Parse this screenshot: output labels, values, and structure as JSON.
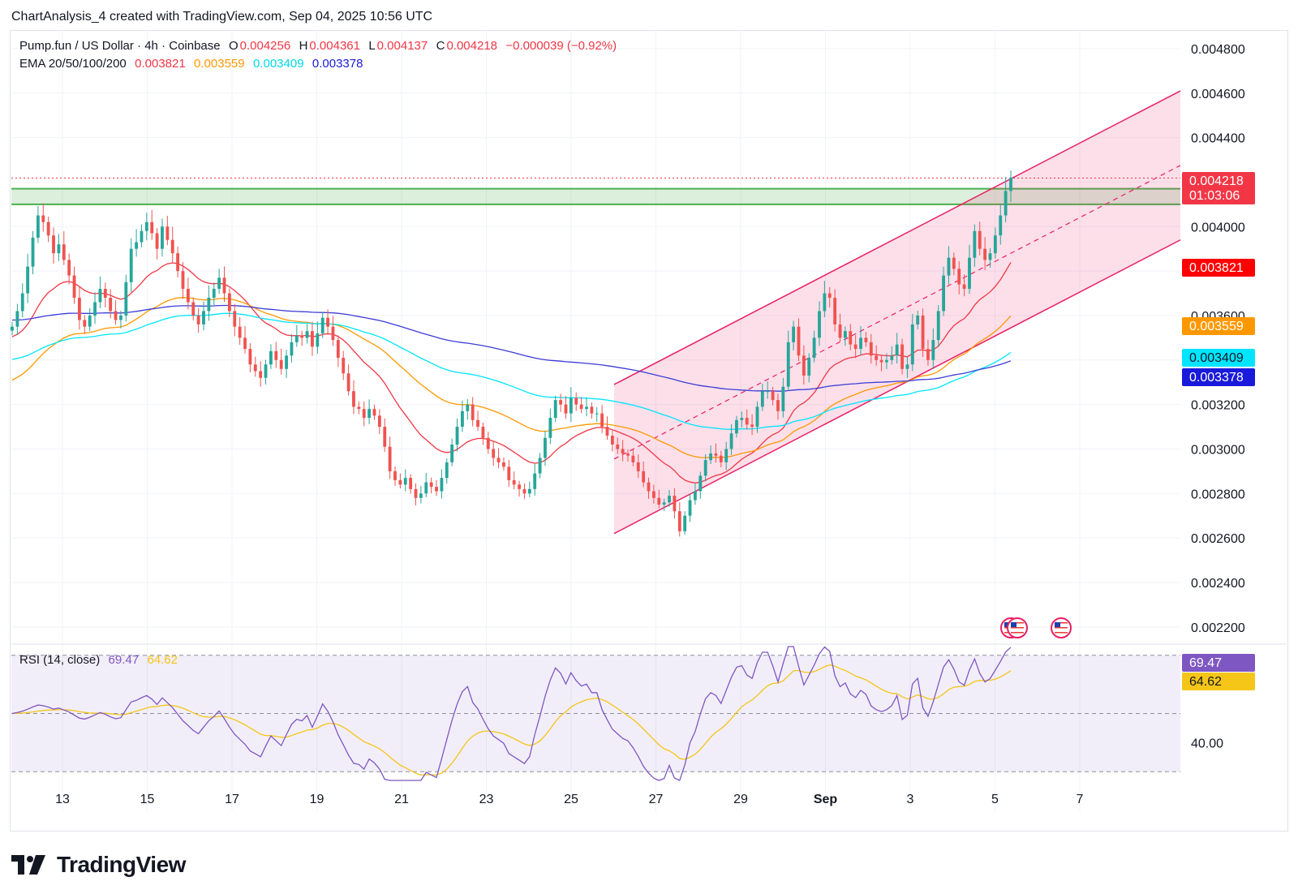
{
  "header": {
    "title": "ChartAnalysis_4 created with TradingView.com, Sep 04, 2025 10:56 UTC"
  },
  "symbol": {
    "name": "Pump.fun / US Dollar · 4h · Coinbase",
    "o_label": "O",
    "o": "0.004256",
    "h_label": "H",
    "h": "0.004361",
    "l_label": "L",
    "l": "0.004137",
    "c_label": "C",
    "c": "0.004218",
    "change": "−0.000039 (−0.92%)"
  },
  "ema_legend": {
    "label": "EMA 20/50/100/200",
    "v20": "0.003821",
    "v50": "0.003559",
    "v100": "0.003409",
    "v200": "0.003378"
  },
  "rsi_legend": {
    "label": "RSI (14, close)",
    "rsi": "69.47",
    "ma": "64.62"
  },
  "colors": {
    "up": "#26a69a",
    "down": "#ef5350",
    "ema20": "#f23645",
    "ema50": "#ff9800",
    "ema100": "#00e5ff",
    "ema200": "#3c3cd6",
    "rsi": "#7e57c2",
    "rsi_ma": "#f5c518",
    "zone": "#4caf50",
    "channel": "#e91e63"
  },
  "chart_data": [
    {
      "type": "candlestick",
      "title": "Pump.fun / US Dollar · 4h · Coinbase",
      "x_ticks": [
        "13",
        "15",
        "17",
        "19",
        "21",
        "23",
        "25",
        "27",
        "29",
        "Sep",
        "3",
        "5",
        "7"
      ],
      "y_ticks": [
        "0.004800",
        "0.004600",
        "0.004400",
        "0.004000",
        "0.003600",
        "0.003200",
        "0.003000",
        "0.002800",
        "0.002600",
        "0.002400",
        "0.002200"
      ],
      "ylim": [
        0.00213,
        0.00488
      ],
      "price_tags": [
        {
          "value": "0.004218",
          "sub": "01:03:06",
          "color": "#f23645"
        },
        {
          "value": "0.003821",
          "color": "#ff0000"
        },
        {
          "value": "0.003559",
          "color": "#ff9800"
        },
        {
          "value": "0.003409",
          "color": "#00e5ff"
        },
        {
          "value": "0.003378",
          "color": "#1a1adb"
        }
      ],
      "resistance_zone": [
        0.0041,
        0.00417
      ],
      "candles_close": [
        0.00355,
        0.00362,
        0.0037,
        0.00382,
        0.00395,
        0.00405,
        0.00402,
        0.00396,
        0.00388,
        0.00392,
        0.00385,
        0.00378,
        0.00368,
        0.00358,
        0.00355,
        0.0036,
        0.00366,
        0.00372,
        0.00368,
        0.00362,
        0.00358,
        0.0036,
        0.00375,
        0.0039,
        0.00393,
        0.00398,
        0.00402,
        0.00397,
        0.0039,
        0.004,
        0.00394,
        0.00388,
        0.0038,
        0.00372,
        0.00366,
        0.0036,
        0.00356,
        0.00362,
        0.00368,
        0.00372,
        0.00377,
        0.0037,
        0.00362,
        0.00355,
        0.0035,
        0.00345,
        0.00338,
        0.00335,
        0.00332,
        0.00338,
        0.00344,
        0.0034,
        0.00336,
        0.00342,
        0.00348,
        0.00351,
        0.0035,
        0.00353,
        0.00346,
        0.00352,
        0.00359,
        0.00355,
        0.00349,
        0.00341,
        0.00334,
        0.00326,
        0.00319,
        0.00318,
        0.00314,
        0.00318,
        0.00315,
        0.0031,
        0.00301,
        0.0029,
        0.00286,
        0.00284,
        0.00287,
        0.00282,
        0.00278,
        0.0028,
        0.00285,
        0.00283,
        0.00281,
        0.00287,
        0.00294,
        0.00302,
        0.0031,
        0.00317,
        0.0032,
        0.00313,
        0.0031,
        0.00305,
        0.003,
        0.00296,
        0.00294,
        0.00292,
        0.00286,
        0.00284,
        0.00282,
        0.0028,
        0.00282,
        0.00289,
        0.00296,
        0.00305,
        0.00314,
        0.00322,
        0.0032,
        0.00316,
        0.00323,
        0.0032,
        0.00318,
        0.00319,
        0.00316,
        0.00316,
        0.0031,
        0.00306,
        0.00302,
        0.003,
        0.00298,
        0.00297,
        0.00294,
        0.0029,
        0.00285,
        0.00281,
        0.00278,
        0.00275,
        0.00276,
        0.00279,
        0.00272,
        0.00263,
        0.0027,
        0.00277,
        0.00281,
        0.00288,
        0.00295,
        0.00298,
        0.00297,
        0.00294,
        0.003,
        0.00307,
        0.00313,
        0.00314,
        0.00311,
        0.0031,
        0.00319,
        0.00326,
        0.00326,
        0.00322,
        0.00317,
        0.00328,
        0.00348,
        0.00355,
        0.00342,
        0.00333,
        0.00341,
        0.0035,
        0.00362,
        0.0037,
        0.00368,
        0.00356,
        0.0035,
        0.00353,
        0.00347,
        0.00345,
        0.0035,
        0.00348,
        0.00342,
        0.0034,
        0.00339,
        0.0034,
        0.00342,
        0.00347,
        0.00336,
        0.00338,
        0.00356,
        0.0036,
        0.00345,
        0.0034,
        0.00349,
        0.00362,
        0.00378,
        0.00386,
        0.00381,
        0.00374,
        0.00372,
        0.00386,
        0.00398,
        0.0039,
        0.00385,
        0.00388,
        0.00396,
        0.00405,
        0.00416,
        0.00422
      ],
      "ema20_last": 0.003821,
      "ema50_last": 0.003559,
      "ema100_last": 0.003409,
      "ema200_last": 0.003378
    },
    {
      "type": "line",
      "title": "RSI (14, close)",
      "y_ticks": [
        "40.00"
      ],
      "bands": [
        30,
        50,
        70
      ],
      "ylim": [
        27,
        73
      ],
      "price_tags": [
        {
          "value": "69.47",
          "color": "#7e57c2"
        },
        {
          "value": "64.62",
          "color": "#f5c518"
        }
      ]
    }
  ],
  "logo": {
    "text": "TradingView"
  }
}
